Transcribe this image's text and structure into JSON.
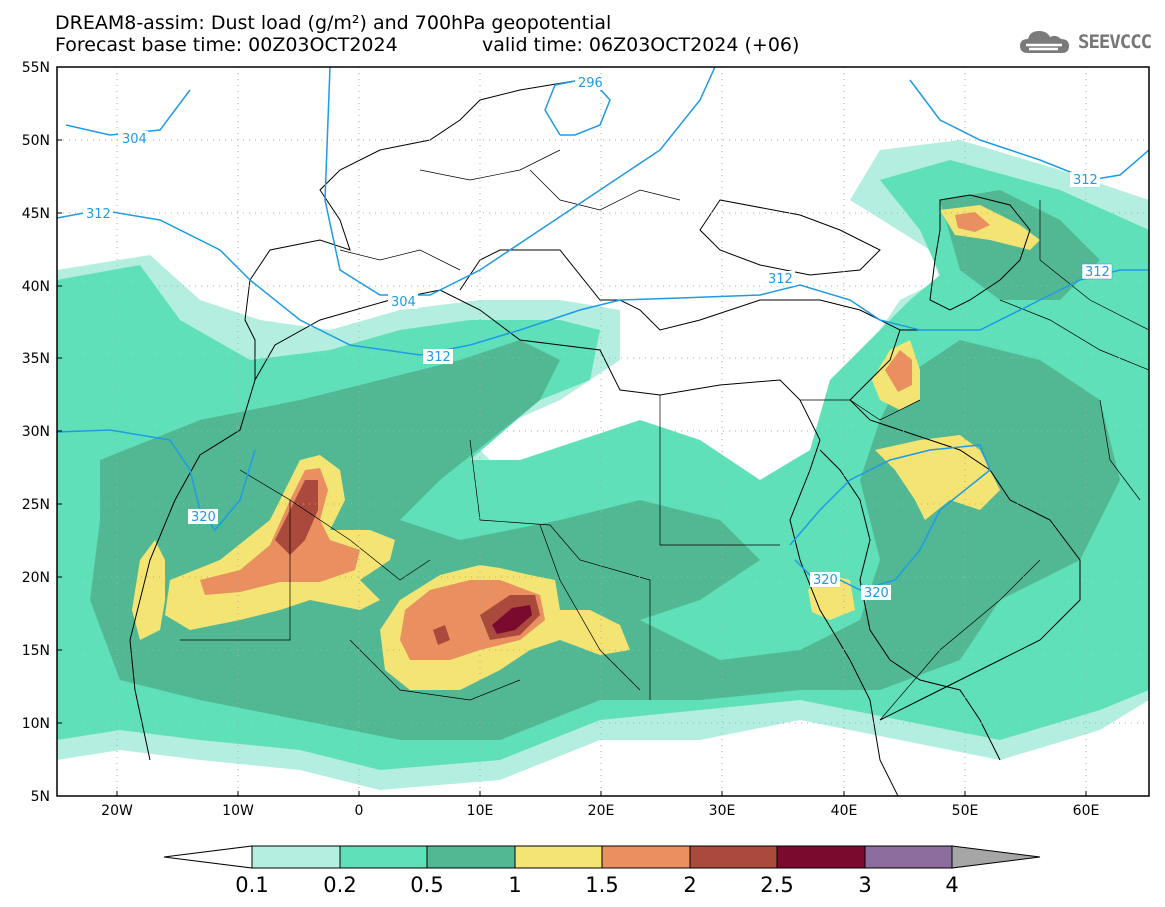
{
  "header": {
    "title": "DREAM8-assim: Dust load (g/m²) and 700hPa geopotential",
    "base_time": "Forecast base time: 00Z03OCT2024",
    "valid_time": "valid time: 06Z03OCT2024 (+06)",
    "logo_text": "SEEVCCC",
    "logo_icon": "cloud-icon"
  },
  "map": {
    "lat_labels": [
      "55N",
      "50N",
      "45N",
      "40N",
      "35N",
      "30N",
      "25N",
      "20N",
      "15N",
      "10N",
      "5N"
    ],
    "lon_labels": [
      "20W",
      "10W",
      "0",
      "10E",
      "20E",
      "30E",
      "40E",
      "50E",
      "60E"
    ],
    "contour_labels": {
      "c296": "296",
      "c304a": "304",
      "c304b": "304",
      "c312a": "312",
      "c312b": "312",
      "c312c": "312",
      "c312d": "312",
      "c312e": "312",
      "c320a": "320",
      "c320b": "320",
      "c320c": "320"
    },
    "colors": {
      "c01": "#b3eee0",
      "c02": "#5fe0b8",
      "c05": "#52b894",
      "c1": "#f4e474",
      "c15": "#e98f60",
      "c2": "#aa4a3c",
      "c25": "#7a0a2e",
      "c3": "#8c6c9c",
      "c4": "#a6a6a6",
      "contour": "#1e9be4"
    }
  },
  "colorbar": {
    "labels": [
      "0.1",
      "0.2",
      "0.5",
      "1",
      "1.5",
      "2",
      "2.5",
      "3",
      "4"
    ]
  }
}
